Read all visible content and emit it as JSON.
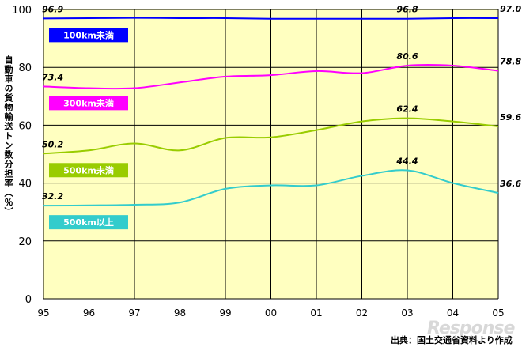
{
  "chart_data": {
    "type": "line",
    "ylabel": "自動車の貨物輸送トン数分担率（％）",
    "ylim": [
      0,
      100
    ],
    "yticks": [
      0,
      20,
      40,
      60,
      80,
      100
    ],
    "categories": [
      "95",
      "96",
      "97",
      "98",
      "99",
      "00",
      "01",
      "02",
      "03",
      "04",
      "05"
    ],
    "grid": true,
    "plot_background": "#FFFFC0",
    "series": [
      {
        "name": "100km未満",
        "color": "#0000FF",
        "values": [
          96.9,
          97.0,
          97.1,
          97.0,
          97.0,
          96.8,
          96.8,
          96.8,
          96.8,
          97.0,
          97.0
        ],
        "labels": [
          {
            "index": 0,
            "text": "96.9"
          },
          {
            "index": 8,
            "text": "96.8"
          },
          {
            "index": 10,
            "text": "97.0"
          }
        ]
      },
      {
        "name": "300km未満",
        "color": "#FF00FF",
        "values": [
          73.4,
          72.8,
          72.8,
          74.8,
          76.8,
          77.3,
          78.7,
          78.0,
          80.6,
          80.6,
          78.8
        ],
        "labels": [
          {
            "index": 0,
            "text": "73.4"
          },
          {
            "index": 8,
            "text": "80.6"
          },
          {
            "index": 10,
            "text": "78.8"
          }
        ]
      },
      {
        "name": "500km未満",
        "color": "#99CC00",
        "values": [
          50.2,
          51.3,
          53.7,
          51.3,
          55.6,
          55.8,
          58.3,
          61.3,
          62.4,
          61.3,
          59.6
        ],
        "labels": [
          {
            "index": 0,
            "text": "50.2"
          },
          {
            "index": 8,
            "text": "62.4"
          },
          {
            "index": 10,
            "text": "59.6"
          }
        ]
      },
      {
        "name": "500km以上",
        "color": "#33CCCC",
        "values": [
          32.2,
          32.3,
          32.5,
          33.3,
          38.0,
          39.2,
          39.2,
          42.5,
          44.4,
          40.0,
          36.6
        ],
        "labels": [
          {
            "index": 0,
            "text": "32.2"
          },
          {
            "index": 8,
            "text": "44.4"
          },
          {
            "index": 10,
            "text": "36.6"
          }
        ]
      }
    ],
    "source_note": "出典：国土交通省資料より作成",
    "watermark": "Response"
  }
}
